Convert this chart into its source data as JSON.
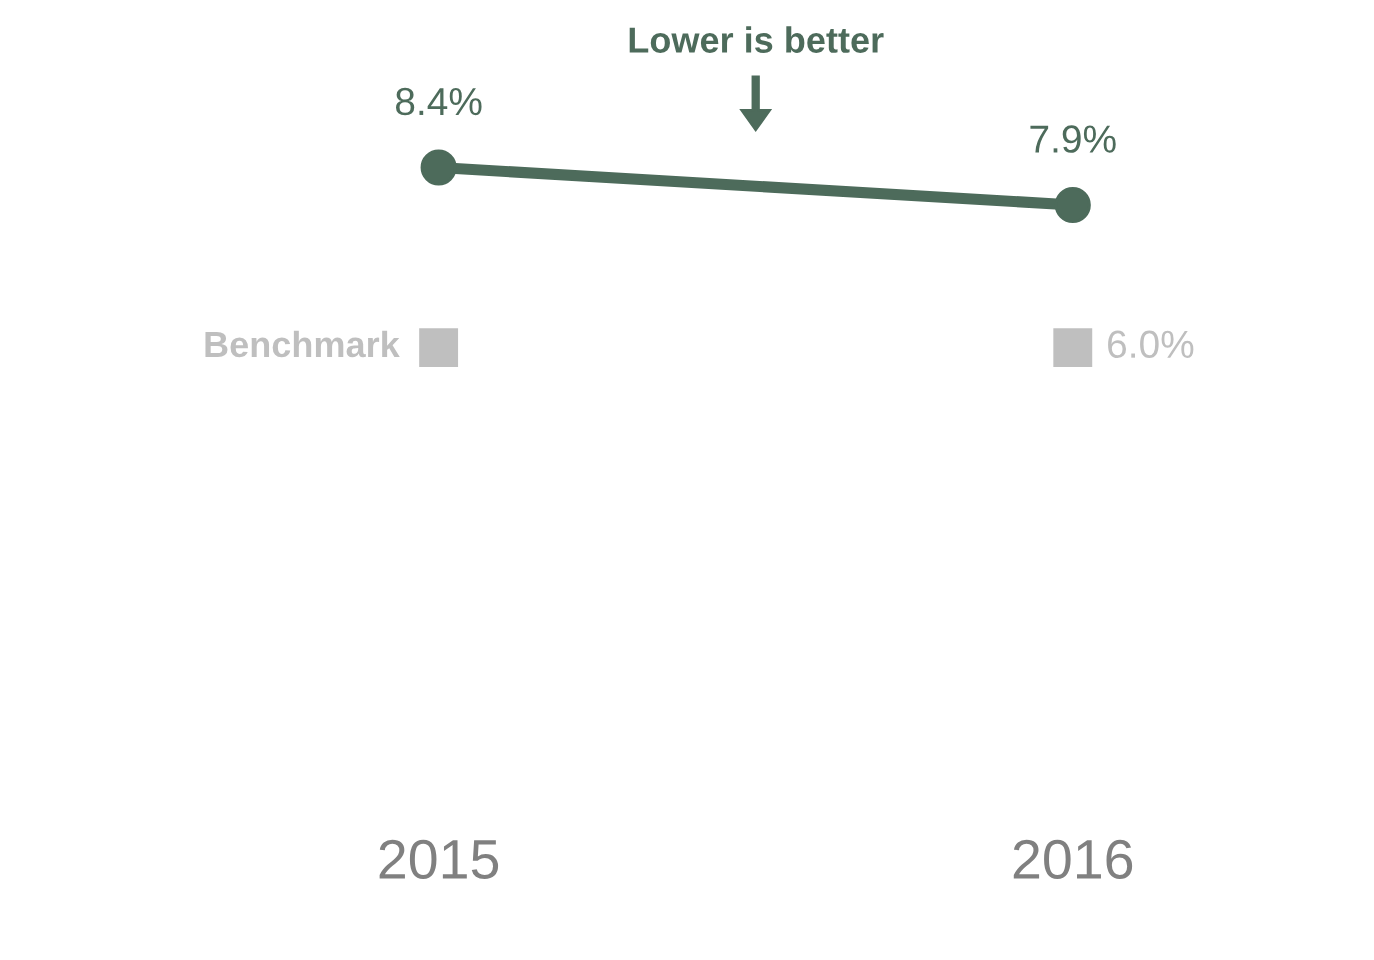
{
  "chart_data": {
    "type": "line",
    "categories": [
      "2015",
      "2016"
    ],
    "series": [
      {
        "name": null,
        "color": "#4d6b5b",
        "values": [
          8.4,
          7.9
        ],
        "value_labels": [
          "8.4%",
          "7.9%"
        ],
        "marker": "circle"
      },
      {
        "name": "Benchmark",
        "type": "scatter",
        "color": "#bfbfbf",
        "values": [
          6.0,
          6.0
        ],
        "value_labels": [
          null,
          "6.0%"
        ],
        "marker": "square"
      }
    ],
    "annotations": [
      "Lower is better"
    ],
    "tick_labels": "x",
    "grid": false,
    "legend": "left"
  }
}
